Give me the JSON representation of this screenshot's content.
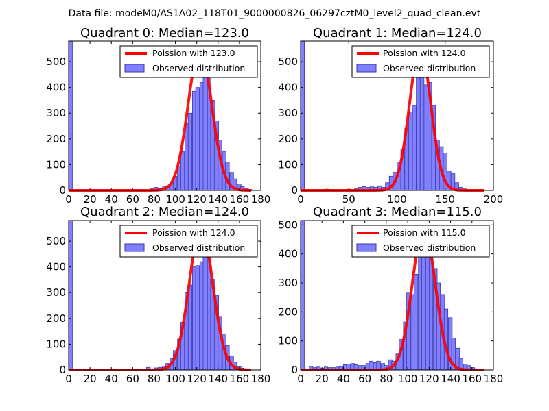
{
  "suptitle": "Data file: modeM0/AS1A02_118T01_9000000826_06297cztM0_level2_quad_clean.evt",
  "colors": {
    "curve": "#ff0000",
    "bars": "#7f7fff",
    "bar_edge": "#3a3aa8"
  },
  "chart_data": [
    {
      "type": "bar",
      "title": "Quadrant 0: Median=123.0",
      "legend": {
        "curve": "Poission with 123.0",
        "bars": "Observed distribution",
        "placement": "top-right"
      },
      "xlim": [
        0,
        180
      ],
      "ylim": [
        0,
        580
      ],
      "xticks": [
        0,
        20,
        40,
        60,
        80,
        100,
        120,
        140,
        160,
        180
      ],
      "yticks": [
        0,
        100,
        200,
        300,
        400,
        500
      ],
      "median": 123,
      "peak": 550,
      "bin_width": 3.5,
      "bins": [
        [
          0,
          580
        ],
        [
          77,
          8
        ],
        [
          80,
          12
        ],
        [
          84,
          8
        ],
        [
          88,
          14
        ],
        [
          91,
          18
        ],
        [
          95,
          30
        ],
        [
          98,
          55
        ],
        [
          102,
          95
        ],
        [
          105,
          150
        ],
        [
          109,
          260
        ],
        [
          112,
          300
        ],
        [
          116,
          385
        ],
        [
          119,
          400
        ],
        [
          123,
          420
        ],
        [
          126,
          440
        ],
        [
          130,
          435
        ],
        [
          133,
          350
        ],
        [
          137,
          270
        ],
        [
          140,
          195
        ],
        [
          144,
          150
        ],
        [
          147,
          110
        ],
        [
          151,
          70
        ],
        [
          154,
          45
        ],
        [
          158,
          25
        ],
        [
          161,
          15
        ],
        [
          165,
          8
        ],
        [
          168,
          4
        ]
      ]
    },
    {
      "type": "bar",
      "title": "Quadrant 1: Median=124.0",
      "legend": {
        "curve": "Poission with 124.0",
        "bars": "Observed distribution",
        "placement": "top-right"
      },
      "xlim": [
        0,
        200
      ],
      "ylim": [
        0,
        580
      ],
      "xticks": [
        0,
        50,
        100,
        150,
        200
      ],
      "yticks": [
        0,
        100,
        200,
        300,
        400,
        500
      ],
      "median": 124,
      "peak": 550,
      "bin_width": 4,
      "bins": [
        [
          0,
          580
        ],
        [
          25,
          5
        ],
        [
          48,
          5
        ],
        [
          56,
          8
        ],
        [
          60,
          12
        ],
        [
          64,
          15
        ],
        [
          68,
          12
        ],
        [
          72,
          14
        ],
        [
          76,
          12
        ],
        [
          80,
          18
        ],
        [
          84,
          12
        ],
        [
          88,
          30
        ],
        [
          92,
          55
        ],
        [
          96,
          70
        ],
        [
          100,
          110
        ],
        [
          104,
          160
        ],
        [
          108,
          240
        ],
        [
          112,
          305
        ],
        [
          116,
          330
        ],
        [
          120,
          470
        ],
        [
          124,
          530
        ],
        [
          128,
          410
        ],
        [
          132,
          420
        ],
        [
          136,
          330
        ],
        [
          140,
          195
        ],
        [
          144,
          170
        ],
        [
          148,
          145
        ],
        [
          152,
          75
        ],
        [
          156,
          65
        ],
        [
          160,
          30
        ],
        [
          164,
          12
        ],
        [
          168,
          6
        ],
        [
          172,
          3
        ]
      ]
    },
    {
      "type": "bar",
      "title": "Quadrant 2: Median=124.0",
      "legend": {
        "curve": "Poission with 124.0",
        "bars": "Observed distribution",
        "placement": "top-right"
      },
      "xlim": [
        0,
        180
      ],
      "ylim": [
        0,
        580
      ],
      "xticks": [
        0,
        20,
        40,
        60,
        80,
        100,
        120,
        140,
        160,
        180
      ],
      "yticks": [
        0,
        100,
        200,
        300,
        400,
        500
      ],
      "median": 124,
      "peak": 550,
      "bin_width": 3.5,
      "bins": [
        [
          0,
          580
        ],
        [
          73,
          10
        ],
        [
          80,
          8
        ],
        [
          84,
          10
        ],
        [
          88,
          15
        ],
        [
          91,
          25
        ],
        [
          95,
          45
        ],
        [
          98,
          75
        ],
        [
          102,
          120
        ],
        [
          105,
          185
        ],
        [
          109,
          300
        ],
        [
          112,
          330
        ],
        [
          116,
          400
        ],
        [
          119,
          405
        ],
        [
          123,
          420
        ],
        [
          126,
          530
        ],
        [
          130,
          440
        ],
        [
          133,
          350
        ],
        [
          137,
          290
        ],
        [
          140,
          205
        ],
        [
          144,
          140
        ],
        [
          147,
          95
        ],
        [
          151,
          55
        ],
        [
          154,
          30
        ],
        [
          158,
          12
        ],
        [
          161,
          7
        ],
        [
          165,
          3
        ]
      ]
    },
    {
      "type": "bar",
      "title": "Quadrant 3: Median=115.0",
      "legend": {
        "curve": "Poission with 115.0",
        "bars": "Observed distribution",
        "placement": "top-right"
      },
      "xlim": [
        0,
        180
      ],
      "ylim": [
        0,
        515
      ],
      "xticks": [
        0,
        20,
        40,
        60,
        80,
        100,
        120,
        140,
        160,
        180
      ],
      "yticks": [
        0,
        100,
        200,
        300,
        400,
        500
      ],
      "median": 115,
      "peak": 490,
      "bin_width": 3.5,
      "bins": [
        [
          0,
          515
        ],
        [
          8,
          12
        ],
        [
          12,
          8
        ],
        [
          15,
          10
        ],
        [
          19,
          6
        ],
        [
          22,
          10
        ],
        [
          26,
          8
        ],
        [
          29,
          8
        ],
        [
          33,
          10
        ],
        [
          36,
          12
        ],
        [
          40,
          18
        ],
        [
          43,
          20
        ],
        [
          47,
          22
        ],
        [
          50,
          18
        ],
        [
          54,
          15
        ],
        [
          57,
          15
        ],
        [
          61,
          22
        ],
        [
          64,
          30
        ],
        [
          68,
          25
        ],
        [
          71,
          30
        ],
        [
          75,
          22
        ],
        [
          78,
          15
        ],
        [
          82,
          35
        ],
        [
          85,
          30
        ],
        [
          89,
          55
        ],
        [
          92,
          105
        ],
        [
          96,
          165
        ],
        [
          99,
          265
        ],
        [
          103,
          260
        ],
        [
          106,
          330
        ],
        [
          110,
          400
        ],
        [
          113,
          450
        ],
        [
          117,
          435
        ],
        [
          120,
          390
        ],
        [
          124,
          350
        ],
        [
          127,
          300
        ],
        [
          131,
          260
        ],
        [
          134,
          210
        ],
        [
          138,
          180
        ],
        [
          141,
          110
        ],
        [
          145,
          75
        ],
        [
          148,
          40
        ],
        [
          152,
          20
        ],
        [
          155,
          15
        ],
        [
          159,
          8
        ],
        [
          162,
          4
        ]
      ]
    }
  ]
}
